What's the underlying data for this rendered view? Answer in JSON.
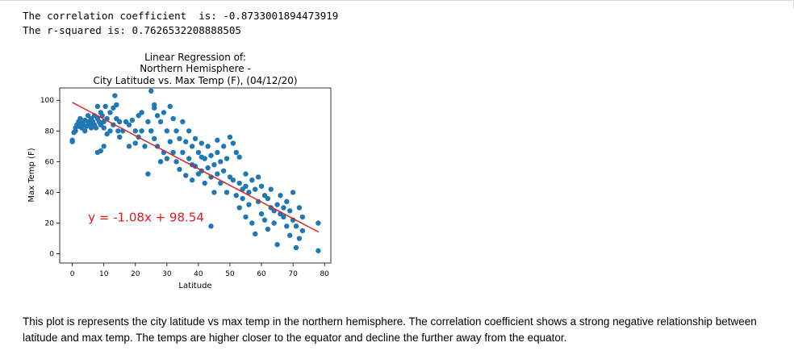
{
  "output": {
    "line1": "The correlation coefficient  is: -0.8733001894473919",
    "line2": "The r-squared is: 0.7626532208888505"
  },
  "chart_data": {
    "type": "scatter",
    "title": [
      "Linear Regression of:",
      "Northern Hemisphere -",
      "City Latitude vs. Max Temp (F), (04/12/20)"
    ],
    "xlabel": "Latitude",
    "ylabel": "Max Temp (F)",
    "xlim": [
      -4,
      82
    ],
    "ylim": [
      -6,
      108
    ],
    "xticks": [
      0,
      10,
      20,
      30,
      40,
      50,
      60,
      70,
      80
    ],
    "yticks": [
      0,
      20,
      40,
      60,
      80,
      100
    ],
    "grid": false,
    "marker_color": "#1f77b4",
    "line_color": "#d62728",
    "regression": {
      "slope": -1.08,
      "intercept": 98.54,
      "x_range": [
        0,
        78.2
      ]
    },
    "annotation": {
      "text": "y = -1.08x + 98.54",
      "x": 5,
      "y": 21,
      "color": "#e31a1c"
    },
    "series": [
      {
        "points": [
          [
            0,
            74
          ],
          [
            0,
            73
          ],
          [
            0.5,
            79
          ],
          [
            1,
            80
          ],
          [
            1,
            82
          ],
          [
            1.5,
            84
          ],
          [
            2,
            86
          ],
          [
            2,
            83
          ],
          [
            2.5,
            88
          ],
          [
            3,
            85
          ],
          [
            3,
            82
          ],
          [
            3.5,
            84
          ],
          [
            4,
            87
          ],
          [
            4,
            80
          ],
          [
            4.5,
            83
          ],
          [
            5,
            90
          ],
          [
            5,
            86
          ],
          [
            5.5,
            84
          ],
          [
            6,
            82
          ],
          [
            6,
            88
          ],
          [
            6.5,
            86
          ],
          [
            7,
            90
          ],
          [
            7,
            84
          ],
          [
            7.5,
            82
          ],
          [
            8,
            96
          ],
          [
            8,
            88
          ],
          [
            8.5,
            86
          ],
          [
            9,
            92
          ],
          [
            9,
            84
          ],
          [
            9.5,
            90
          ],
          [
            10,
            86
          ],
          [
            10,
            82
          ],
          [
            10.5,
            96
          ],
          [
            11,
            88
          ],
          [
            11,
            78
          ],
          [
            12,
            92
          ],
          [
            12,
            80
          ],
          [
            13,
            95
          ],
          [
            13,
            84
          ],
          [
            13.5,
            103
          ],
          [
            14,
            97
          ],
          [
            14,
            88
          ],
          [
            14.5,
            80
          ],
          [
            15,
            86
          ],
          [
            15,
            76
          ],
          [
            16,
            80
          ],
          [
            17,
            86
          ],
          [
            18,
            84
          ],
          [
            18,
            70
          ],
          [
            19,
            87
          ],
          [
            20,
            80
          ],
          [
            20,
            72
          ],
          [
            21,
            90
          ],
          [
            21,
            76
          ],
          [
            22,
            92
          ],
          [
            22,
            80
          ],
          [
            23,
            70
          ],
          [
            24,
            86
          ],
          [
            24,
            52
          ],
          [
            25,
            106
          ],
          [
            25,
            80
          ],
          [
            26,
            95
          ],
          [
            26,
            75
          ],
          [
            27,
            90
          ],
          [
            27,
            70
          ],
          [
            28,
            86
          ],
          [
            28,
            60
          ],
          [
            29,
            92
          ],
          [
            29,
            66
          ],
          [
            30,
            80
          ],
          [
            30,
            62
          ],
          [
            31,
            96
          ],
          [
            31,
            73
          ],
          [
            32,
            88
          ],
          [
            32,
            66
          ],
          [
            33,
            80
          ],
          [
            33,
            60
          ],
          [
            34,
            75
          ],
          [
            34,
            55
          ],
          [
            35,
            86
          ],
          [
            35,
            66
          ],
          [
            36,
            73
          ],
          [
            36,
            51
          ],
          [
            37,
            80
          ],
          [
            37,
            62
          ],
          [
            38,
            70
          ],
          [
            38,
            48
          ],
          [
            39,
            75
          ],
          [
            39,
            57
          ],
          [
            40,
            66
          ],
          [
            40,
            52
          ],
          [
            41,
            72
          ],
          [
            41,
            54
          ],
          [
            42,
            62
          ],
          [
            42,
            46
          ],
          [
            43,
            70
          ],
          [
            43,
            56
          ],
          [
            44,
            64
          ],
          [
            44,
            50
          ],
          [
            45,
            58
          ],
          [
            45,
            40
          ],
          [
            46,
            66
          ],
          [
            46,
            52
          ],
          [
            47,
            60
          ],
          [
            47,
            46
          ],
          [
            48,
            70
          ],
          [
            48,
            54
          ],
          [
            49,
            62
          ],
          [
            49,
            40
          ],
          [
            50,
            76
          ],
          [
            50,
            50
          ],
          [
            51,
            72
          ],
          [
            51,
            48
          ],
          [
            52,
            66
          ],
          [
            52,
            38
          ],
          [
            53,
            46
          ],
          [
            53,
            30
          ],
          [
            54,
            42
          ],
          [
            54,
            36
          ],
          [
            55,
            52
          ],
          [
            55,
            44
          ],
          [
            56,
            40
          ],
          [
            56,
            32
          ],
          [
            57,
            48
          ],
          [
            57,
            20
          ],
          [
            58,
            42
          ],
          [
            58,
            13
          ],
          [
            59,
            50
          ],
          [
            59,
            34
          ],
          [
            60,
            44
          ],
          [
            60,
            26
          ],
          [
            61,
            38
          ],
          [
            61,
            22
          ],
          [
            62,
            36
          ],
          [
            62,
            16
          ],
          [
            63,
            30
          ],
          [
            63,
            42
          ],
          [
            64,
            28
          ],
          [
            64,
            20
          ],
          [
            65,
            32
          ],
          [
            65,
            6
          ],
          [
            66,
            26
          ],
          [
            66,
            38
          ],
          [
            67,
            30
          ],
          [
            67,
            24
          ],
          [
            68,
            18
          ],
          [
            68,
            34
          ],
          [
            69,
            28
          ],
          [
            69,
            12
          ],
          [
            70,
            40
          ],
          [
            70,
            22
          ],
          [
            71,
            18
          ],
          [
            71,
            4
          ],
          [
            72,
            30
          ],
          [
            72,
            10
          ],
          [
            73,
            24
          ],
          [
            73,
            15
          ],
          [
            78,
            20
          ],
          [
            78,
            2
          ],
          [
            25,
            80
          ],
          [
            9,
            67
          ],
          [
            10,
            70
          ],
          [
            8,
            66
          ],
          [
            44,
            18
          ],
          [
            26,
            97
          ],
          [
            38,
            58
          ],
          [
            41,
            63
          ],
          [
            46,
            74
          ],
          [
            53,
            63
          ],
          [
            55,
            24
          ]
        ]
      }
    ]
  },
  "markdown": {
    "text": "This plot is represents the city latitude vs max temp in the northern hemisphere. The correlation coefficient shows a strong negative relationship between latitude and max temp. The temps are higher closer to the equator and decline the further away from the equator."
  }
}
